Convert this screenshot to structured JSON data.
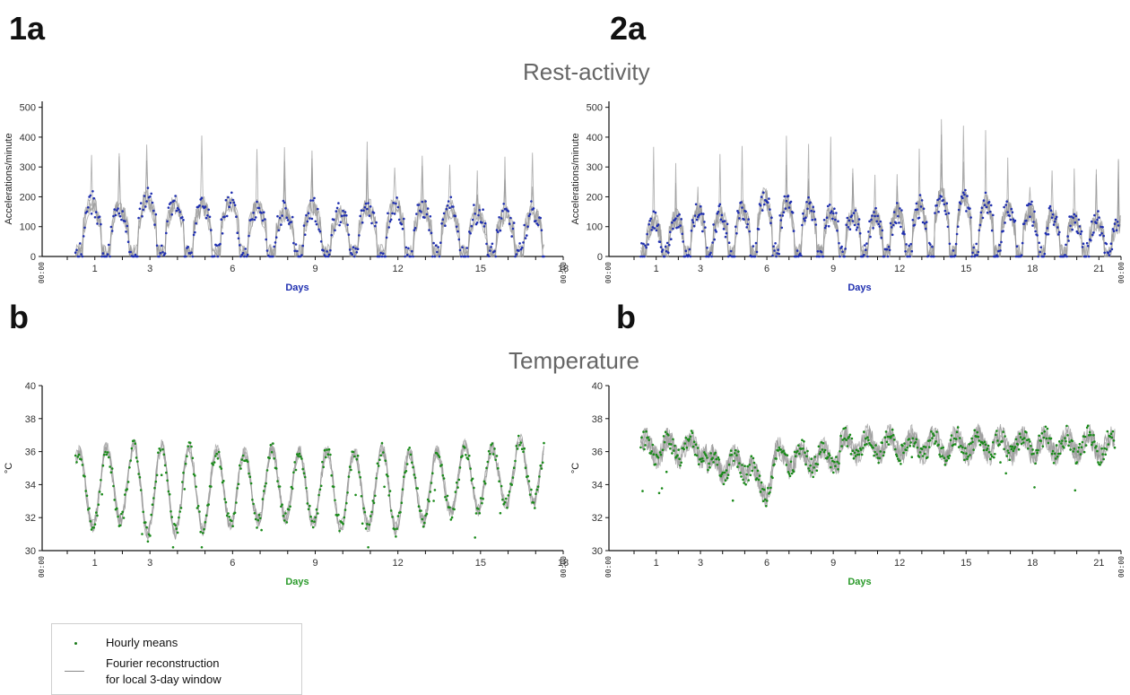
{
  "labels": {
    "p1a": "1a",
    "p2a": "2a",
    "p1b": "b",
    "p2b": "b"
  },
  "section_titles": {
    "rest": "Rest-activity",
    "temp": "Temperature"
  },
  "legend": {
    "points_label": "Hourly means",
    "line_label_1": "Fourier reconstruction",
    "line_label_2": "for local 3-day window"
  },
  "colors": {
    "activity_points": "#1f2fb0",
    "temperature_points": "#1a8a1a",
    "reconstruction_lines": "#9a9a9a",
    "days_activity": "#1f2fb0",
    "days_temperature": "#2a9a2a"
  },
  "chart_data": [
    {
      "id": "act1",
      "type": "line",
      "ylabel": "Accelerations/minute",
      "xlabel": "Days",
      "ylim": [
        0,
        520
      ],
      "yticks": [
        0,
        100,
        200,
        300,
        400,
        500
      ],
      "xlim": [
        0,
        18
      ],
      "xticks": [
        1,
        3,
        6,
        9,
        12,
        15,
        18
      ],
      "origin_label": "00:00",
      "end_label": "00:00",
      "days": 17,
      "series": [
        {
          "kind": "points",
          "values_desc": "hourly means"
        },
        {
          "kind": "lines",
          "values_desc": "reconstruction"
        }
      ],
      "daily_peaks": [
        180,
        160,
        195,
        175,
        170,
        180,
        165,
        150,
        160,
        145,
        170,
        175,
        165,
        160,
        150,
        140,
        150
      ]
    },
    {
      "id": "act2",
      "type": "line",
      "ylabel": "Accelerations/minute",
      "xlabel": "Days",
      "ylim": [
        0,
        520
      ],
      "yticks": [
        0,
        100,
        200,
        300,
        400,
        500
      ],
      "xlim": [
        0,
        22
      ],
      "xticks": [
        1,
        3,
        6,
        9,
        12,
        15,
        18,
        21
      ],
      "origin_label": "00:00",
      "end_label": "00:00",
      "days": 22,
      "daily_peaks": [
        120,
        130,
        150,
        140,
        160,
        200,
        180,
        170,
        150,
        140,
        130,
        150,
        170,
        210,
        200,
        180,
        160,
        150,
        140,
        130,
        120,
        110
      ]
    },
    {
      "id": "temp1",
      "type": "line",
      "ylabel": "°C",
      "xlabel": "Days",
      "ylim": [
        30,
        40
      ],
      "yticks": [
        30,
        32,
        34,
        36,
        38,
        40
      ],
      "xlim": [
        0,
        18
      ],
      "xticks": [
        1,
        3,
        6,
        9,
        12,
        15,
        18
      ],
      "origin_label": "00:00",
      "end_label": "00:00",
      "days": 17,
      "daily_max": [
        36.0,
        36.2,
        36.4,
        36.3,
        36.2,
        36.1,
        35.9,
        36.1,
        36.0,
        36.1,
        36.0,
        36.2,
        35.9,
        36.0,
        36.3,
        36.2,
        36.7
      ],
      "daily_min": [
        31.5,
        31.8,
        31.0,
        31.1,
        31.2,
        31.5,
        31.8,
        32.0,
        31.6,
        31.4,
        31.5,
        31.3,
        31.8,
        32.3,
        32.5,
        32.8,
        33.0
      ]
    },
    {
      "id": "temp2",
      "type": "line",
      "ylabel": "°C",
      "xlabel": "Days",
      "ylim": [
        30,
        40
      ],
      "yticks": [
        30,
        32,
        34,
        36,
        38,
        40
      ],
      "xlim": [
        0,
        22
      ],
      "xticks": [
        1,
        3,
        6,
        9,
        12,
        15,
        18,
        21
      ],
      "origin_label": "00:00",
      "end_label": "00:00",
      "days": 22
    }
  ]
}
